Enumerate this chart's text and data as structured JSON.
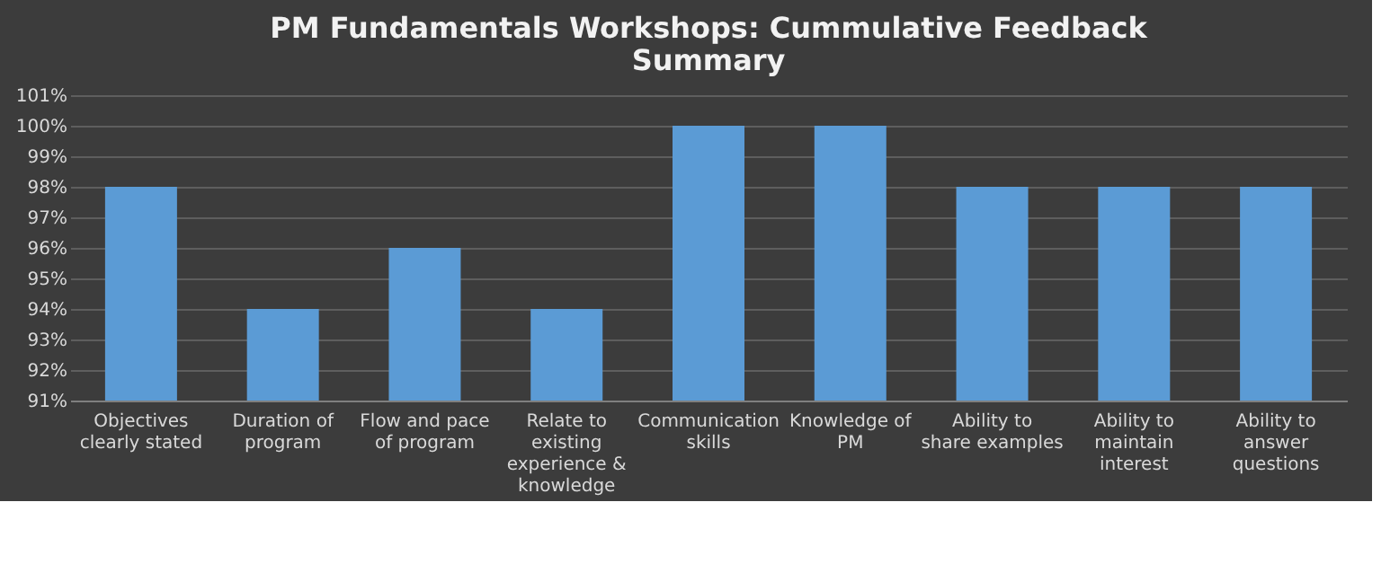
{
  "chart_data": {
    "type": "bar",
    "title": "PM Fundamentals Workshops: Cummulative Feedback Summary",
    "categories": [
      "Objectives clearly stated",
      "Duration of program",
      "Flow and pace of program",
      "Relate to existing experience & knowledge",
      "Communication skills",
      "Knowledge of PM",
      "Ability to share examples",
      "Ability to maintain interest",
      "Ability to answer questions"
    ],
    "values": [
      98,
      94,
      96,
      94,
      100,
      100,
      98,
      98,
      98
    ],
    "color": "#5b9bd5",
    "ylim": [
      91,
      101
    ],
    "yticks": [
      {
        "value": 91,
        "label": "91%"
      },
      {
        "value": 92,
        "label": "92%"
      },
      {
        "value": 93,
        "label": "93%"
      },
      {
        "value": 94,
        "label": "94%"
      },
      {
        "value": 95,
        "label": "95%"
      },
      {
        "value": 96,
        "label": "96%"
      },
      {
        "value": 97,
        "label": "97%"
      },
      {
        "value": 98,
        "label": "98%"
      },
      {
        "value": 99,
        "label": "99%"
      },
      {
        "value": 100,
        "label": "100%"
      },
      {
        "value": 101,
        "label": "101%"
      }
    ],
    "grid": "y"
  }
}
